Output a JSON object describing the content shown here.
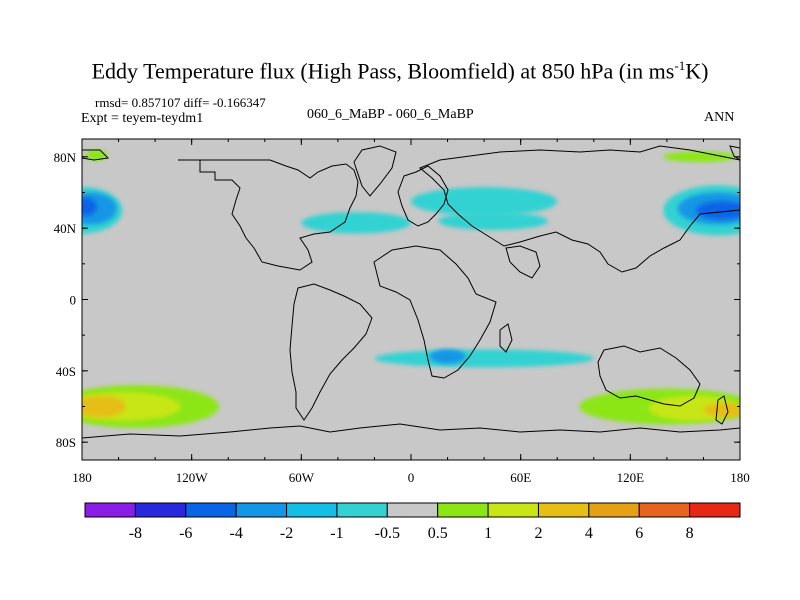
{
  "header": {
    "title_prefix": "Eddy Temperature flux (High Pass, Bloomfield) at 850 hPa (in ms",
    "title_sup": "-1",
    "title_suffix": "K)",
    "stats": "rmsd= 0.857107 diff= -0.166347",
    "expt": "Expt = teyem-teydm1",
    "center_label": "060_6_MaBP - 060_6_MaBP",
    "period": "ANN"
  },
  "chart_data": {
    "type": "heatmap",
    "title": "Eddy Temperature flux (High Pass, Bloomfield) at 850 hPa (in ms-1K)",
    "xlabel": "",
    "ylabel": "",
    "xlim": [
      -180,
      180
    ],
    "ylim": [
      -90,
      90
    ],
    "x_ticks": [
      {
        "value": -180,
        "label": "180"
      },
      {
        "value": -120,
        "label": "120W"
      },
      {
        "value": -60,
        "label": "60W"
      },
      {
        "value": 0,
        "label": "0"
      },
      {
        "value": 60,
        "label": "60E"
      },
      {
        "value": 120,
        "label": "120E"
      },
      {
        "value": 180,
        "label": "180"
      }
    ],
    "y_ticks": [
      {
        "value": 80,
        "label": "80N"
      },
      {
        "value": 40,
        "label": "40N"
      },
      {
        "value": 0,
        "label": "0"
      },
      {
        "value": -40,
        "label": "40S"
      },
      {
        "value": -80,
        "label": "80S"
      }
    ],
    "colorbar": {
      "levels": [
        "-8",
        "-6",
        "-4",
        "-2",
        "-1",
        "-0.5",
        "0.5",
        "1",
        "2",
        "4",
        "6",
        "8"
      ],
      "colors": [
        "#8a1ee6",
        "#2828dc",
        "#0a64e6",
        "#1496e6",
        "#14bee6",
        "#32d2d2",
        "#c8c8c8",
        "#8ce614",
        "#c8e614",
        "#e6be14",
        "#e6a014",
        "#e6641e",
        "#e62814"
      ]
    },
    "regions": [
      {
        "name": "north-pacific-west-band",
        "lon": -180,
        "lat": 50,
        "rlon": 22,
        "rlat": 13,
        "color": "#32d2d2"
      },
      {
        "name": "north-pacific-west-mid",
        "lon": -175,
        "lat": 51,
        "rlon": 14,
        "rlat": 9,
        "color": "#1496e6"
      },
      {
        "name": "north-pacific-west-core",
        "lon": -178,
        "lat": 52,
        "rlon": 6,
        "rlat": 5,
        "color": "#0a64e6"
      },
      {
        "name": "north-pacific-east-band",
        "lon": 168,
        "lat": 50,
        "rlon": 30,
        "rlat": 14,
        "color": "#32d2d2"
      },
      {
        "name": "north-pacific-east-mid",
        "lon": 168,
        "lat": 51,
        "rlon": 22,
        "rlat": 9,
        "color": "#1496e6"
      },
      {
        "name": "north-pacific-east-core",
        "lon": 170,
        "lat": 50,
        "rlon": 14,
        "rlat": 5,
        "color": "#0a64e6"
      },
      {
        "name": "north-atlantic",
        "lon": -30,
        "lat": 43,
        "rlon": 30,
        "rlat": 6,
        "color": "#32d2d2"
      },
      {
        "name": "eurasia-north",
        "lon": 40,
        "lat": 55,
        "rlon": 40,
        "rlat": 8,
        "color": "#32d2d2"
      },
      {
        "name": "eurasia-south",
        "lon": 45,
        "lat": 44,
        "rlon": 30,
        "rlat": 5,
        "color": "#32d2d2"
      },
      {
        "name": "arctic-west-green",
        "lon": -172,
        "lat": 81,
        "rlon": 6,
        "rlat": 3,
        "color": "#8ce614"
      },
      {
        "name": "arctic-east-green",
        "lon": 158,
        "lat": 80,
        "rlon": 20,
        "rlat": 3,
        "color": "#8ce614"
      },
      {
        "name": "southern-atlantic-cyan",
        "lon": 40,
        "lat": -33,
        "rlon": 60,
        "rlat": 5,
        "color": "#32d2d2"
      },
      {
        "name": "southern-atlantic-core",
        "lon": 20,
        "lat": -32,
        "rlon": 10,
        "rlat": 4,
        "color": "#1496e6"
      },
      {
        "name": "south-pacific-green-west",
        "lon": -150,
        "lat": -60,
        "rlon": 45,
        "rlat": 12,
        "color": "#8ce614"
      },
      {
        "name": "south-pacific-yellow-west",
        "lon": -158,
        "lat": -60,
        "rlon": 32,
        "rlat": 8,
        "color": "#c8e614"
      },
      {
        "name": "south-pacific-orange-west",
        "lon": -170,
        "lat": -60,
        "rlon": 14,
        "rlat": 6,
        "color": "#e6be14"
      },
      {
        "name": "south-green-east",
        "lon": 140,
        "lat": -60,
        "rlon": 48,
        "rlat": 10,
        "color": "#8ce614"
      },
      {
        "name": "south-yellow-east",
        "lon": 155,
        "lat": -61,
        "rlon": 25,
        "rlat": 7,
        "color": "#c8e614"
      },
      {
        "name": "south-orange-east",
        "lon": 172,
        "lat": -62,
        "rlon": 12,
        "rlat": 4,
        "color": "#e6be14"
      }
    ]
  }
}
